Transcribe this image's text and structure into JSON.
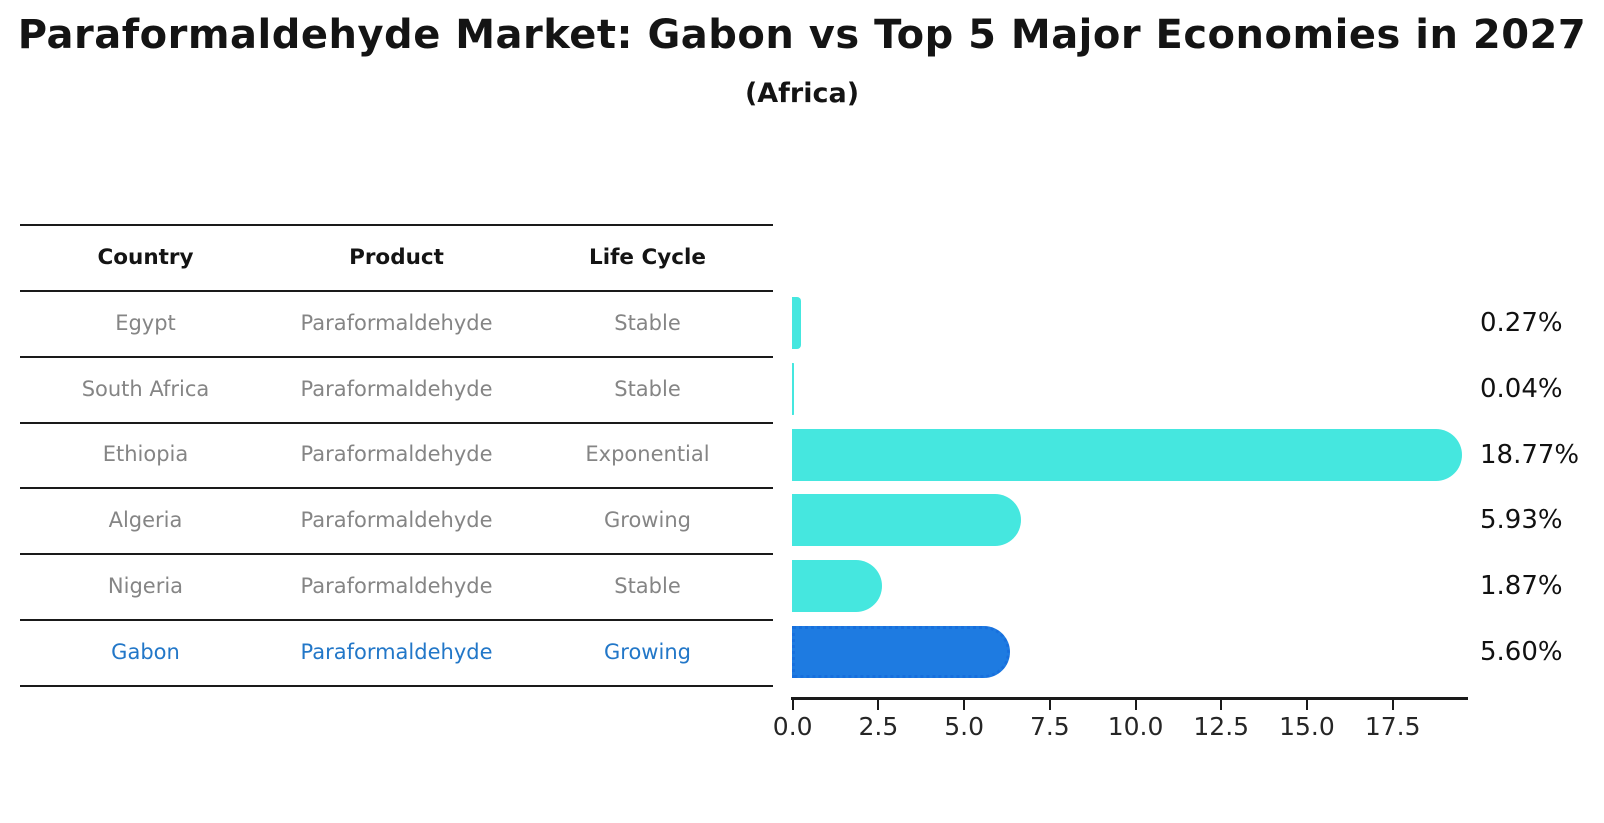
{
  "title": "Paraformaldehyde Market: Gabon vs Top 5 Major Economies in 2027",
  "subtitle": "(Africa)",
  "table": {
    "headers": [
      "Country",
      "Product",
      "Life Cycle"
    ],
    "rows": [
      {
        "country": "Egypt",
        "product": "Paraformaldehyde",
        "life_cycle": "Stable",
        "highlight": false
      },
      {
        "country": "South Africa",
        "product": "Paraformaldehyde",
        "life_cycle": "Stable",
        "highlight": false
      },
      {
        "country": "Ethiopia",
        "product": "Paraformaldehyde",
        "life_cycle": "Exponential",
        "highlight": false
      },
      {
        "country": "Algeria",
        "product": "Paraformaldehyde",
        "life_cycle": "Growing",
        "highlight": false
      },
      {
        "country": "Nigeria",
        "product": "Paraformaldehyde",
        "life_cycle": "Stable",
        "highlight": false
      },
      {
        "country": "Gabon",
        "product": "Paraformaldehyde",
        "life_cycle": "Growing",
        "highlight": true
      }
    ]
  },
  "chart_data": {
    "type": "bar",
    "orientation": "horizontal",
    "title": "Paraformaldehyde Market: Gabon vs Top 5 Major Economies in 2027 (Africa)",
    "categories": [
      "Egypt",
      "South Africa",
      "Ethiopia",
      "Algeria",
      "Nigeria",
      "Gabon"
    ],
    "values": [
      0.27,
      0.04,
      18.77,
      5.93,
      1.87,
      5.6
    ],
    "value_labels": [
      "0.27%",
      "0.04%",
      "18.77%",
      "5.93%",
      "1.87%",
      "5.60%"
    ],
    "x_tick_labels": [
      "0.0",
      "2.5",
      "5.0",
      "7.5",
      "10.0",
      "12.5",
      "15.0",
      "17.5"
    ],
    "x_tick_values": [
      0,
      2.5,
      5,
      7.5,
      10,
      12.5,
      15,
      17.5
    ],
    "xlim": [
      0,
      19.7
    ],
    "grid": false,
    "legend": false,
    "highlight_index": 5
  },
  "colors": {
    "bar": "#45E7DF",
    "highlight_bar": "#1E7BE1",
    "highlight_border": "#176FDD",
    "highlight_text": "#2277C8",
    "table_text": "#858585",
    "axis": "#1a1a1a"
  }
}
